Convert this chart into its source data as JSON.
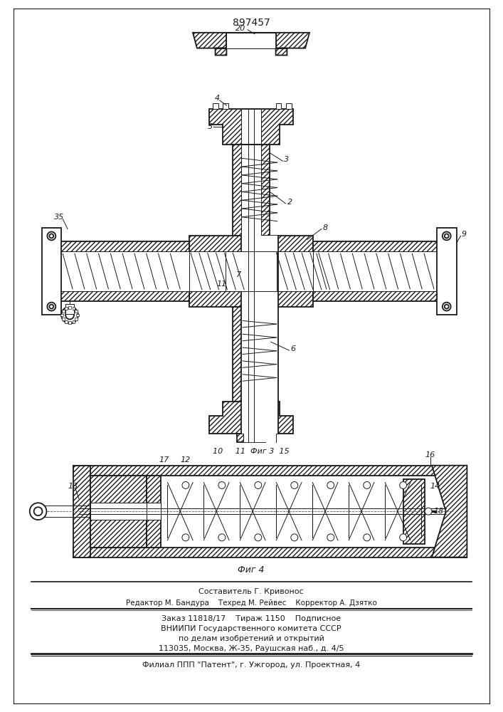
{
  "patent_number": "897457",
  "background_color": "#ffffff",
  "line_color": "#1a1a1a",
  "fig3_label": "Фиг 3",
  "fig4_label": "Фиг 4",
  "footer_lines": [
    "Составитель Г. Кривонос",
    "Редактор М. Бандура    Техред М. Рейвес    Корректор А. Дзятко",
    "Заказ 11818/17    Тираж 1150    Подписное",
    "ВНИИПИ Государственного комитета СССР",
    "по делам изобретений и открытий",
    "113035, Москва, Ж-35, Раушская наб., д. 4/5",
    "Филиал ППП \"Патент\", г. Ужгород, ул. Проектная, 4"
  ]
}
